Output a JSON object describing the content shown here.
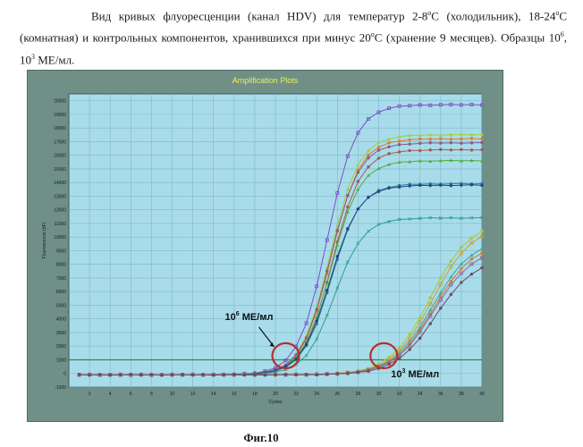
{
  "caption": {
    "line1_before": "Вид кривых флуоресценции (канал HDV) для температур 2-8",
    "deg": "о",
    "line1_mid": "C (холодильник), 18-24",
    "line1_mid2": "C (комнатная) и контрольных компонентов, хранившихся при минус 20",
    "line1_after": "C (хранение 9 месяцев). Образцы 10",
    "exp6": "6",
    "comma": ", 10",
    "exp3": "3",
    "unit_after": " МЕ/мл."
  },
  "figure_label": "Фиг.10",
  "colors": {
    "panel": "#6f8f87",
    "plot_bg": "#a9dcea",
    "grid": "#7fb6c6",
    "threshold": "#2c8a4a",
    "title": "#f2ee59",
    "circle": "#b4312f"
  },
  "chart_data": {
    "type": "line",
    "title": "Amplification Plots",
    "xlabel": "Cycles",
    "ylabel": "Fluorescence (dF)",
    "xlim": [
      0,
      40
    ],
    "ylim": [
      -1000,
      20500
    ],
    "xticks": [
      2,
      4,
      6,
      8,
      10,
      12,
      14,
      16,
      18,
      20,
      22,
      24,
      26,
      28,
      30,
      32,
      34,
      36,
      38,
      40
    ],
    "yticks": [
      -1000,
      0,
      1000,
      2000,
      3000,
      4000,
      5000,
      6000,
      7000,
      8000,
      9000,
      10000,
      11000,
      12000,
      13000,
      14000,
      15000,
      16000,
      17000,
      18000,
      19000,
      20000
    ],
    "grid": true,
    "threshold": 1000,
    "annotations": [
      {
        "text": "10",
        "exp": "6",
        "unit": " МЕ/мл",
        "x": 21,
        "y": 1300
      },
      {
        "text": "10",
        "exp": "3",
        "unit": " МЕ/мл",
        "x": 30.5,
        "y": 1300
      }
    ],
    "series": [
      {
        "color": "#7a4fc7",
        "marker": "square",
        "plateau": 19800,
        "midpoint": 25.0,
        "slope": 0.72
      },
      {
        "color": "#9ad23a",
        "marker": "triangle",
        "plateau": 17600,
        "midpoint": 25.3,
        "slope": 0.72
      },
      {
        "color": "#e07b2e",
        "marker": "circle",
        "plateau": 17300,
        "midpoint": 25.4,
        "slope": 0.72
      },
      {
        "color": "#8a5a8c",
        "marker": "circle",
        "plateau": 17000,
        "midpoint": 25.3,
        "slope": 0.72
      },
      {
        "color": "#a35a52",
        "marker": "circle",
        "plateau": 16500,
        "midpoint": 25.5,
        "slope": 0.72
      },
      {
        "color": "#4fae3f",
        "marker": "triangle",
        "plateau": 15700,
        "midpoint": 25.4,
        "slope": 0.72
      },
      {
        "color": "#1a8a8a",
        "marker": "circle",
        "plateau": 14000,
        "midpoint": 25.4,
        "slope": 0.72
      },
      {
        "color": "#2d3e8c",
        "marker": "circle",
        "plateau": 13900,
        "midpoint": 25.3,
        "slope": 0.72
      },
      {
        "color": "#2f9c8e",
        "marker": "cross",
        "plateau": 11500,
        "midpoint": 25.7,
        "slope": 0.72
      },
      {
        "color": "#a8c83a",
        "marker": "circle",
        "plateau": 11300,
        "midpoint": 35.0,
        "slope": 0.52
      },
      {
        "color": "#c7a232",
        "marker": "square",
        "plateau": 11000,
        "midpoint": 35.2,
        "slope": 0.52
      },
      {
        "color": "#3aa7a0",
        "marker": "triangle",
        "plateau": 10000,
        "midpoint": 35.2,
        "slope": 0.52
      },
      {
        "color": "#d6782e",
        "marker": "circle",
        "plateau": 9700,
        "midpoint": 35.3,
        "slope": 0.52
      },
      {
        "color": "#8a6a9c",
        "marker": "square",
        "plateau": 9300,
        "midpoint": 35.3,
        "slope": 0.52
      },
      {
        "color": "#6b4a5e",
        "marker": "circle",
        "plateau": 8600,
        "midpoint": 35.5,
        "slope": 0.52
      }
    ]
  }
}
